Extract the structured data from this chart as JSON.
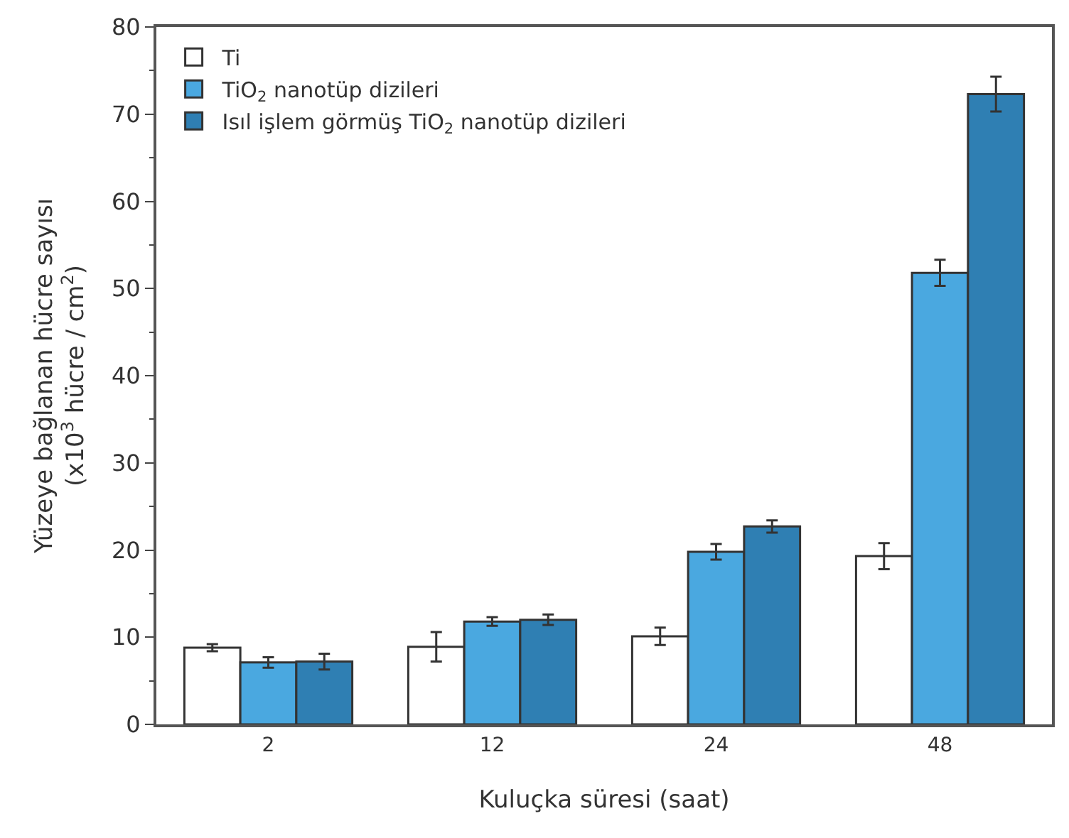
{
  "chart_data": {
    "type": "bar",
    "xlabel": "Kuluçka süresi (saat)",
    "ylabel": "Yüzeye bağlanan hücre sayısı\n(x10$^{3}$ hücre / cm$^{2}$)",
    "categories": [
      "2",
      "12",
      "24",
      "48"
    ],
    "series": [
      {
        "name": "Ti",
        "color": "#ffffff",
        "values": [
          8.8,
          8.9,
          10.1,
          19.3
        ],
        "errors": [
          0.4,
          1.7,
          1.0,
          1.5
        ]
      },
      {
        "name": "TiO$_{2}$ nanotüp dizileri",
        "color": "#4aa8e0",
        "values": [
          7.1,
          11.8,
          19.8,
          51.8
        ],
        "errors": [
          0.6,
          0.5,
          0.9,
          1.5
        ]
      },
      {
        "name": "Isıl işlem görmüş TiO$_{2}$ nanotüp dizileri",
        "color": "#2f7fb3",
        "values": [
          7.2,
          12.0,
          22.7,
          72.3
        ],
        "errors": [
          0.9,
          0.6,
          0.7,
          2.0
        ]
      }
    ],
    "ylim": [
      0,
      80
    ],
    "yticks": [
      0,
      10,
      20,
      30,
      40,
      50,
      60,
      70,
      80
    ],
    "legend": "top left"
  }
}
